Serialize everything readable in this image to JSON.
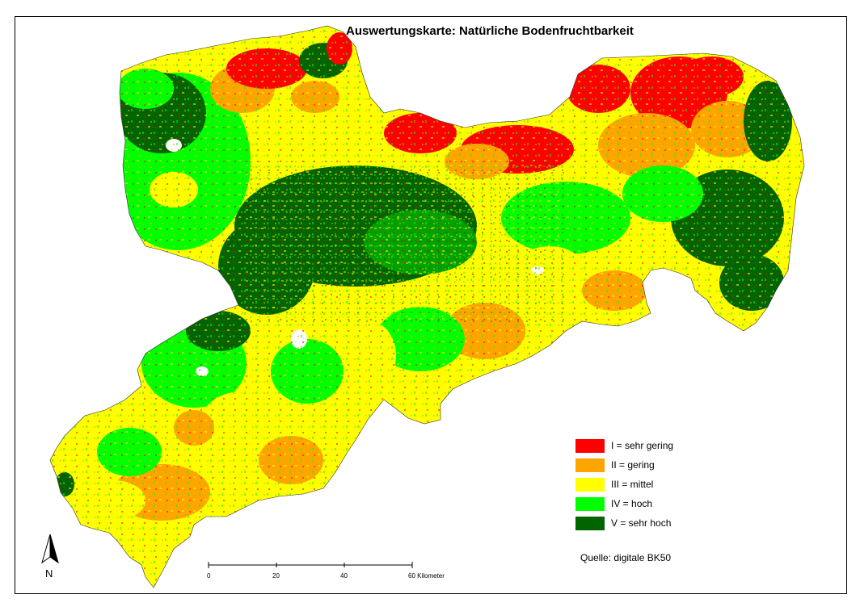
{
  "title": "Auswertungskarte: Natürliche Bodenfruchtbarkeit",
  "legend": {
    "items": [
      {
        "label": "I = sehr gering",
        "color": "#ff0000"
      },
      {
        "label": "II = gering",
        "color": "#ffa500"
      },
      {
        "label": "III = mittel",
        "color": "#ffff00"
      },
      {
        "label": "IV = hoch",
        "color": "#00ff00"
      },
      {
        "label": "V = sehr hoch",
        "color": "#006400"
      }
    ]
  },
  "source": "Quelle: digitale BK50",
  "north_arrow": {
    "label": "N"
  },
  "scale": {
    "ticks": [
      "0",
      "20",
      "40",
      "60 Kilometer"
    ]
  }
}
